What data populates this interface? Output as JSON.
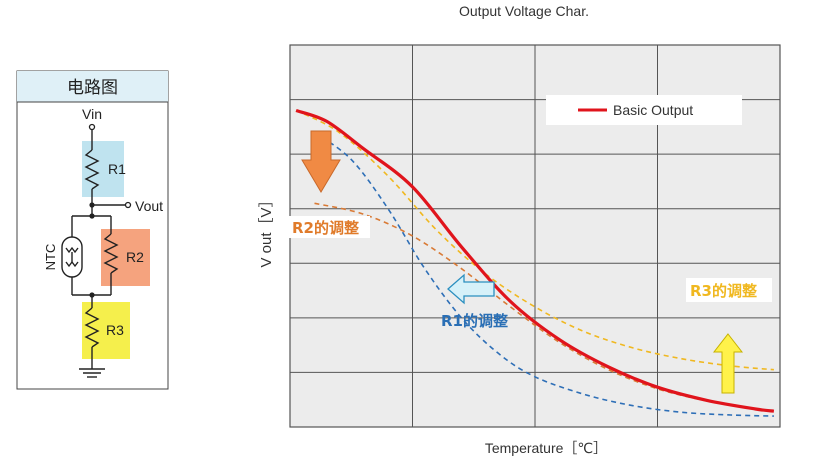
{
  "circuit": {
    "title": "电路图",
    "vin_label": "Vin",
    "vout_label": "Vout",
    "r1_label": "R1",
    "r2_label": "R2",
    "r3_label": "R3",
    "ntc_label": "NTC",
    "colors": {
      "r1": "#bfe3ef",
      "r2": "#f5a37e",
      "r3": "#f5ef4c",
      "header": "#dff0f7"
    }
  },
  "chart_data": {
    "type": "line",
    "title": "Output Voltage Char.",
    "xlabel": "Temperature［℃］",
    "ylabel": "V out［V］",
    "grid": true,
    "legend_position": "top-right",
    "series": [
      {
        "name": "Basic Output",
        "color": "#e0141c",
        "dash": "solid",
        "x": [
          0.05,
          0.3,
          0.6,
          1.0,
          1.4,
          1.8,
          2.2,
          2.6,
          3.0,
          3.4,
          3.8,
          3.95
        ],
        "y": [
          5.8,
          5.6,
          5.1,
          4.4,
          3.3,
          2.3,
          1.6,
          1.1,
          0.73,
          0.49,
          0.33,
          0.29
        ]
      },
      {
        "name": "",
        "color": "#2e6fb7",
        "dash": "dashed",
        "x": [
          0.2,
          0.5,
          0.8,
          1.1,
          1.4,
          1.7,
          2.0,
          2.4,
          2.8,
          3.2,
          3.6,
          3.95
        ],
        "y": [
          5.4,
          4.9,
          4.0,
          2.9,
          2.0,
          1.35,
          0.92,
          0.6,
          0.39,
          0.27,
          0.22,
          0.2
        ]
      },
      {
        "name": "",
        "color": "#d97a35",
        "dash": "dashed",
        "x": [
          0.2,
          0.6,
          1.0,
          1.4,
          1.8,
          2.2,
          2.6,
          3.0,
          3.4,
          3.8,
          3.95
        ],
        "y": [
          4.1,
          3.9,
          3.5,
          2.9,
          2.2,
          1.55,
          1.05,
          0.7,
          0.48,
          0.33,
          0.29
        ]
      },
      {
        "name": "",
        "color": "#f0b820",
        "dash": "dashed",
        "x": [
          0.05,
          0.4,
          0.8,
          1.2,
          1.6,
          2.0,
          2.4,
          2.8,
          3.2,
          3.6,
          3.95
        ],
        "y": [
          5.8,
          5.4,
          4.6,
          3.6,
          2.8,
          2.2,
          1.75,
          1.45,
          1.25,
          1.12,
          1.05
        ]
      }
    ],
    "xlim": [
      0,
      4
    ],
    "ylim": [
      0,
      7
    ],
    "annotations": [
      {
        "text": "R2的调整",
        "color": "#e07b2a"
      },
      {
        "text": "R1的调整",
        "color": "#2a6fb5"
      },
      {
        "text": "R3的调整",
        "color": "#f0b820"
      }
    ]
  }
}
